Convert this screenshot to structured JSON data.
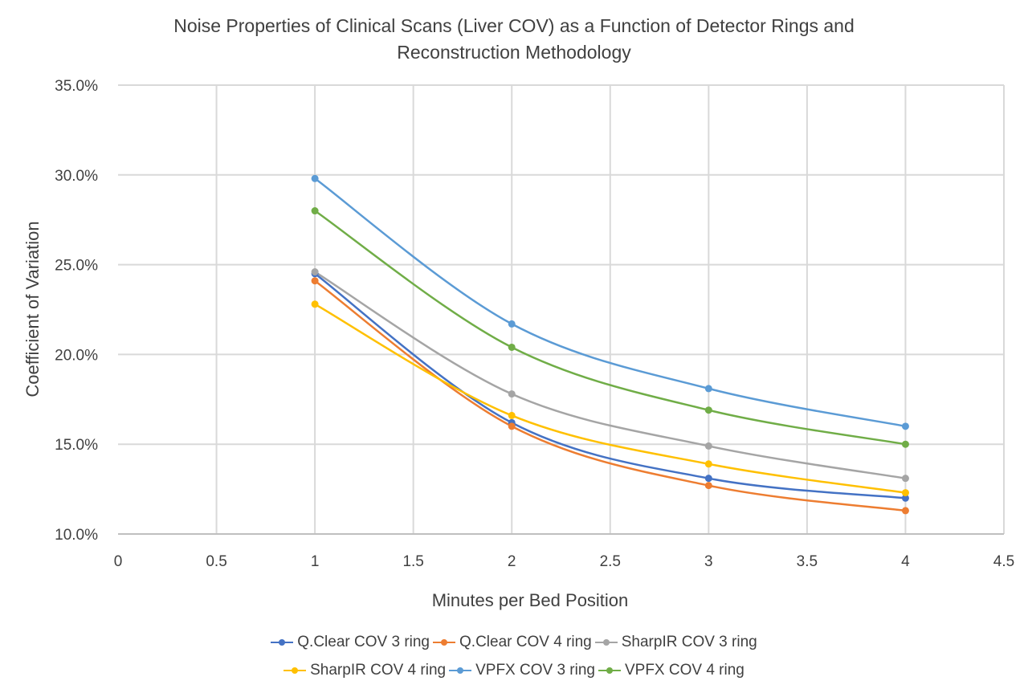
{
  "chart_data": {
    "type": "line",
    "title": [
      "Noise Properties of Clinical Scans (Liver COV) as a Function of Detector Rings and",
      "Reconstruction Methodology"
    ],
    "xlabel": "Minutes per Bed Position",
    "ylabel": "Coefficient of Variation",
    "xlim": [
      0,
      4.5
    ],
    "ylim": [
      0.1,
      0.35
    ],
    "x_ticks": [
      "0",
      "0.5",
      "1",
      "1.5",
      "2",
      "2.5",
      "3",
      "3.5",
      "4",
      "4.5"
    ],
    "y_ticks": [
      "10.0%",
      "15.0%",
      "20.0%",
      "25.0%",
      "30.0%",
      "35.0%"
    ],
    "grid": true,
    "smooth": true,
    "legend_position": "bottom",
    "x": [
      1,
      2,
      3,
      4
    ],
    "series": [
      {
        "name": "Q.Clear COV 3 ring",
        "color": "#4472C4",
        "values": [
          0.245,
          0.162,
          0.131,
          0.12
        ]
      },
      {
        "name": "Q.Clear COV 4 ring",
        "color": "#ED7D31",
        "values": [
          0.241,
          0.16,
          0.127,
          0.113
        ]
      },
      {
        "name": "SharpIR COV 3 ring",
        "color": "#A5A5A5",
        "values": [
          0.246,
          0.178,
          0.149,
          0.131
        ]
      },
      {
        "name": "SharpIR COV 4 ring",
        "color": "#FFC000",
        "values": [
          0.228,
          0.166,
          0.139,
          0.123
        ]
      },
      {
        "name": "VPFX COV 3 ring",
        "color": "#5B9BD5",
        "values": [
          0.298,
          0.217,
          0.181,
          0.16
        ]
      },
      {
        "name": "VPFX COV 4 ring",
        "color": "#70AD47",
        "values": [
          0.28,
          0.204,
          0.169,
          0.15
        ]
      }
    ]
  }
}
